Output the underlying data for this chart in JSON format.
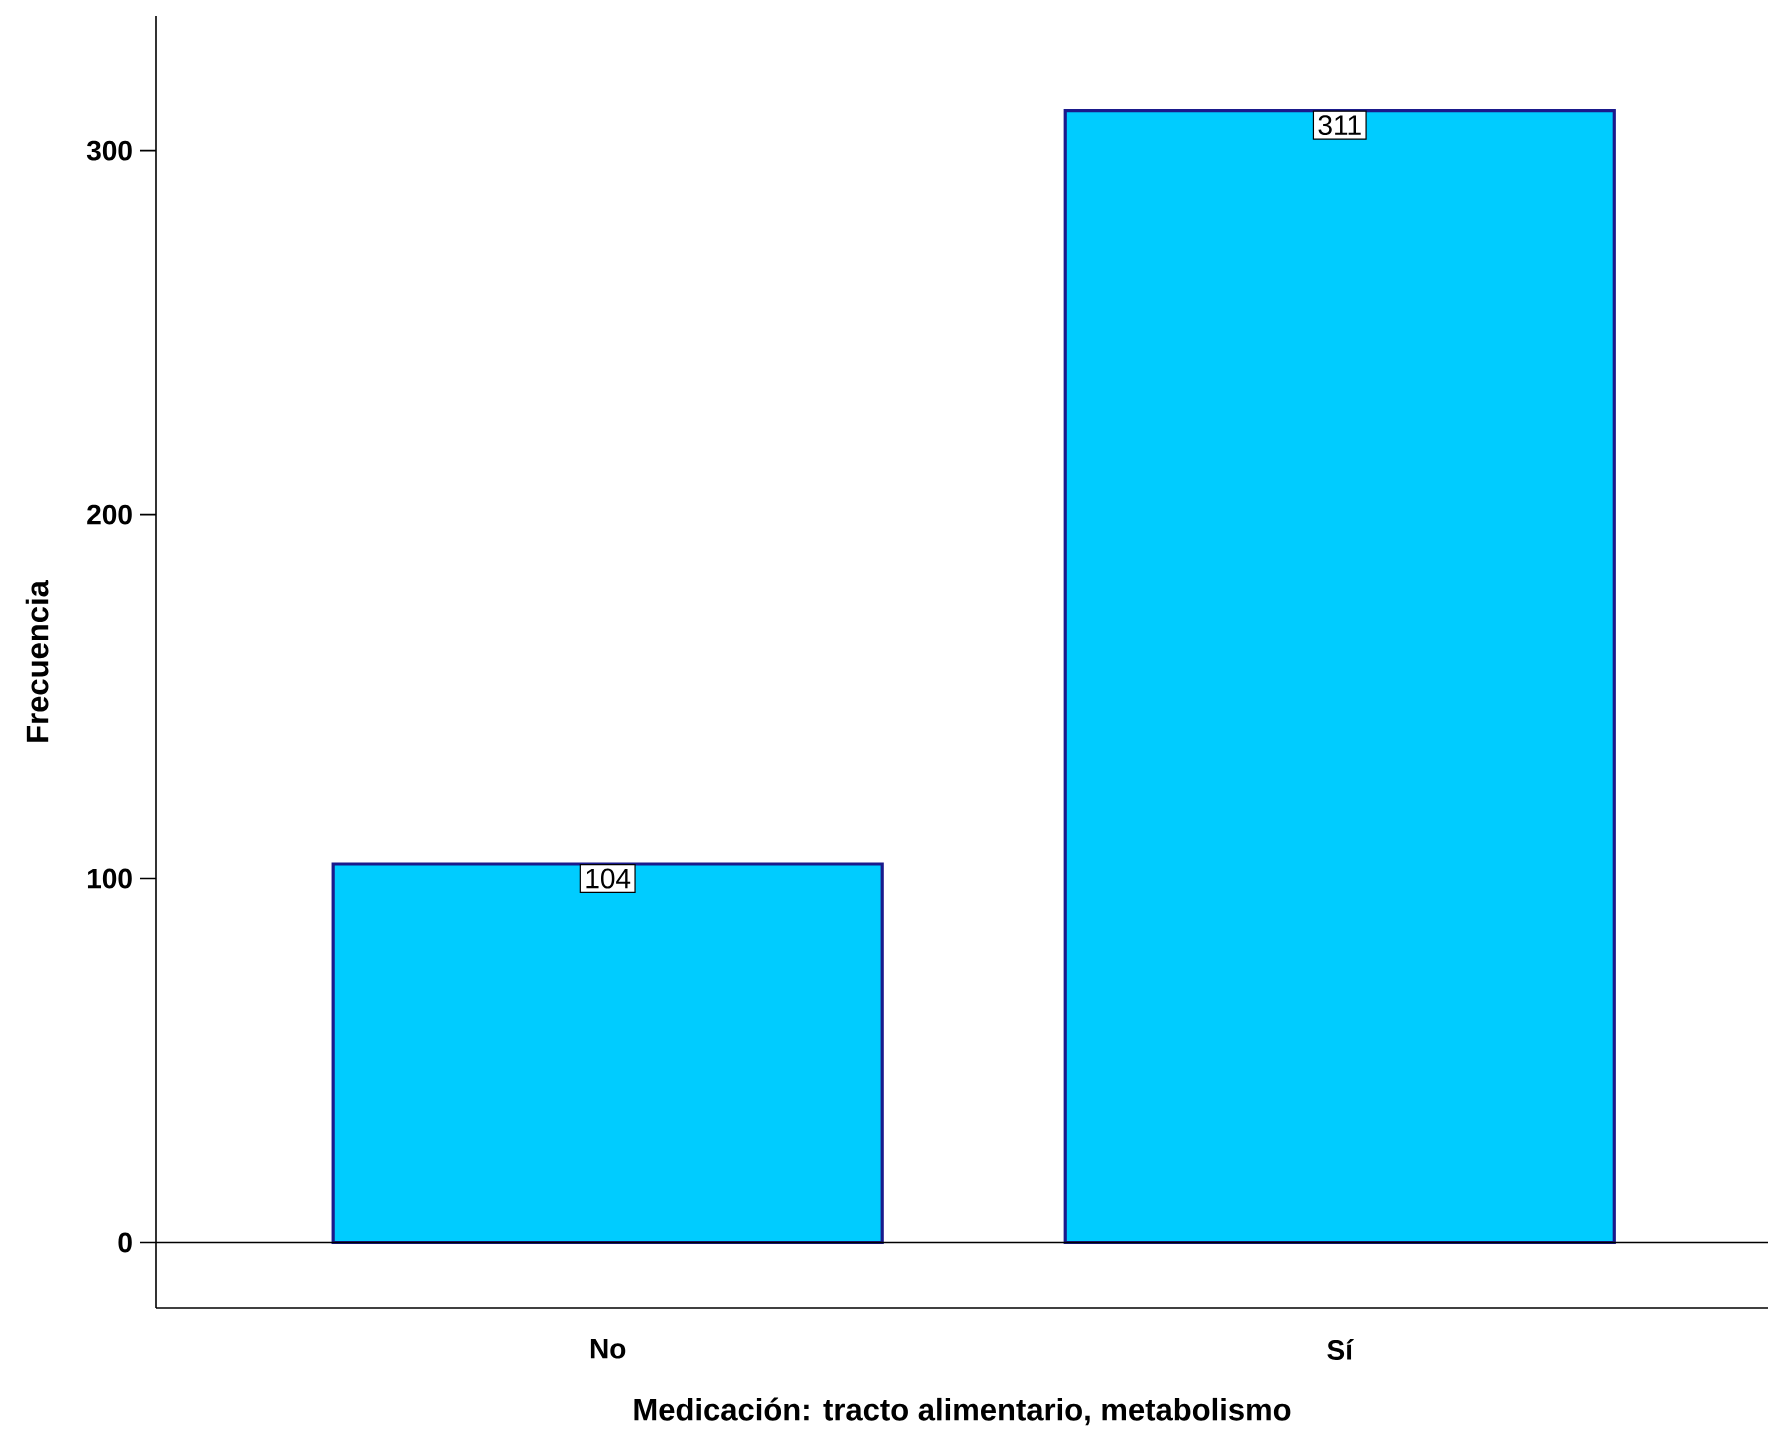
{
  "chart_data": {
    "type": "bar",
    "xlabel": "Medicación: tracto alimentario, metabolismo",
    "ylabel": "Frecuencia",
    "categories": [
      "No",
      "Sí"
    ],
    "values": [
      104,
      311
    ],
    "color": "#00ccff",
    "ylim": [
      -18,
      337
    ],
    "yticks": [
      0,
      100,
      200,
      300
    ],
    "ref_lines": [
      {
        "axis": "y",
        "value": 0
      }
    ],
    "data_labels": true
  }
}
